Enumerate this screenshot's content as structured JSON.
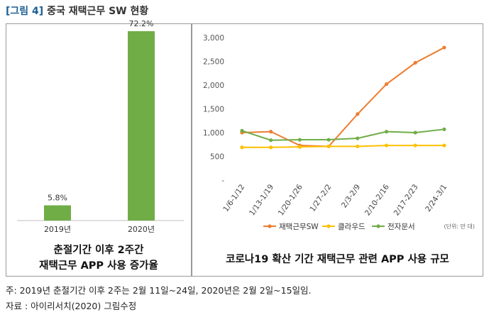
{
  "figure": {
    "label": "[그림 4]",
    "title": "중국 재택근무 SW 현황"
  },
  "left_panel": {
    "caption_lines": [
      "춘절기간 이후 2주간",
      "재택근무 APP 사용 증가율"
    ]
  },
  "right_panel": {
    "caption": "코로나19 확산 기간 재택근무 관련 APP 사용 규모",
    "unit_note": "(단위: 만 대)"
  },
  "footnotes": {
    "note": "주: 2019년 춘절기간 이후 2주는 2월 11일~24일, 2020년은 2월 2일~15일임.",
    "source": "자료 : 아이리서치(2020) 그림수정"
  },
  "chart_data": [
    {
      "type": "bar",
      "categories": [
        "2019년",
        "2020년"
      ],
      "values": [
        5.8,
        72.2
      ],
      "data_labels": [
        "5.8%",
        "72.2%"
      ],
      "ylim": [
        0,
        80
      ],
      "colors": {
        "bar": "#70ad47"
      },
      "grid": false
    },
    {
      "type": "line",
      "categories": [
        "1/6-1/12",
        "1/13-1/19",
        "1/20-1/26",
        "1/27-2/2",
        "2/3-2/9",
        "2/10-2/16",
        "2/17-2/23",
        "2/24-3/1"
      ],
      "yticks": [
        "3,000",
        "2,500",
        "2,000",
        "1,500",
        "1,000",
        "500",
        "-"
      ],
      "ylim": [
        0,
        3000
      ],
      "grid": false,
      "legend_position": "bottom",
      "series": [
        {
          "name": "재택근무SW",
          "color": "#ed7d31",
          "values": [
            1000,
            1020,
            730,
            710,
            1390,
            2020,
            2470,
            2790
          ]
        },
        {
          "name": "클라우드",
          "color": "#ffc000",
          "values": [
            690,
            690,
            700,
            710,
            710,
            730,
            730,
            730
          ]
        },
        {
          "name": "전자문서",
          "color": "#70ad47",
          "values": [
            1040,
            840,
            850,
            850,
            880,
            1020,
            1000,
            1070
          ]
        }
      ]
    }
  ]
}
